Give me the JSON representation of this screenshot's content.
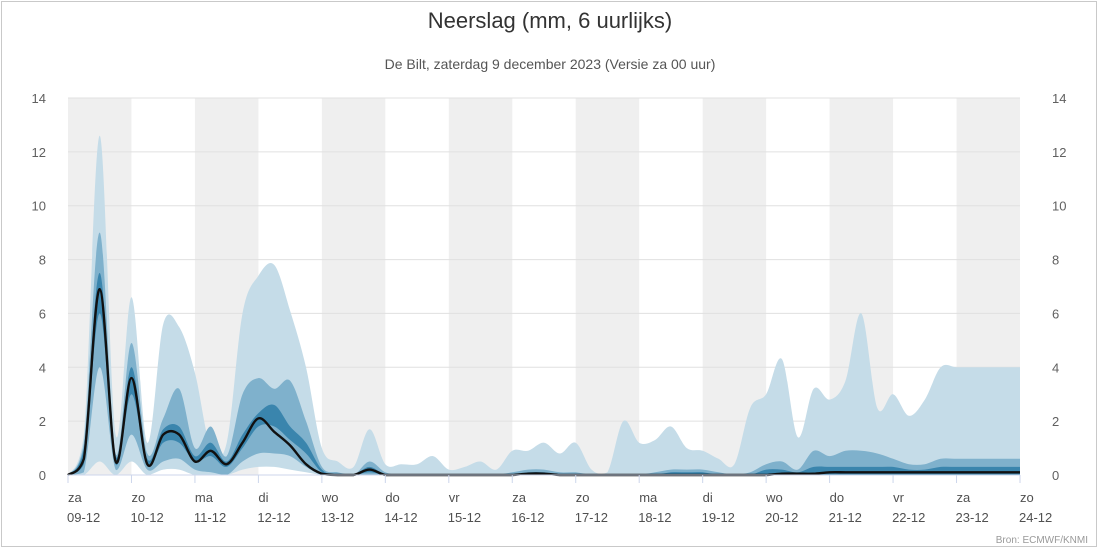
{
  "title": "Neerslag (mm, 6 uurlijks)",
  "subtitle": "De Bilt, zaterdag 9 december 2023 (Versie za 00 uur)",
  "credit": "Bron: ECMWF/KNMI",
  "colors": {
    "outer_band": "#c5dce8",
    "middle_band": "#7fb1cc",
    "inner_band": "#3a85ad",
    "median_line": "#111111",
    "day_shade": "#efefef",
    "grid": "#e0e0e0"
  },
  "chart_data": {
    "type": "area",
    "x_unit": "6-hourly steps from za 09-12 00h",
    "y_range": [
      0,
      14
    ],
    "y_ticks": [
      0,
      2,
      4,
      6,
      8,
      10,
      12,
      14
    ],
    "alternating_day_shading": true,
    "days": [
      {
        "weekday": "za",
        "date": "09-12"
      },
      {
        "weekday": "zo",
        "date": "10-12"
      },
      {
        "weekday": "ma",
        "date": "11-12"
      },
      {
        "weekday": "di",
        "date": "12-12"
      },
      {
        "weekday": "wo",
        "date": "13-12"
      },
      {
        "weekday": "do",
        "date": "14-12"
      },
      {
        "weekday": "vr",
        "date": "15-12"
      },
      {
        "weekday": "za",
        "date": "16-12"
      },
      {
        "weekday": "zo",
        "date": "17-12"
      },
      {
        "weekday": "ma",
        "date": "18-12"
      },
      {
        "weekday": "di",
        "date": "19-12"
      },
      {
        "weekday": "wo",
        "date": "20-12"
      },
      {
        "weekday": "do",
        "date": "21-12"
      },
      {
        "weekday": "vr",
        "date": "22-12"
      },
      {
        "weekday": "za",
        "date": "23-12"
      },
      {
        "weekday": "zo",
        "date": "24-12"
      }
    ],
    "x": [
      0,
      1,
      2,
      3,
      4,
      5,
      6,
      7,
      8,
      9,
      10,
      11,
      12,
      13,
      14,
      15,
      16,
      17,
      18,
      19,
      20,
      21,
      22,
      23,
      24,
      25,
      26,
      27,
      28,
      29,
      30,
      31,
      32,
      33,
      34,
      35,
      36,
      37,
      38,
      39,
      40,
      41,
      42,
      43,
      44,
      45,
      46,
      47,
      48,
      49,
      50,
      51,
      52,
      53,
      54,
      55,
      56,
      57,
      58,
      59,
      60
    ],
    "series": [
      {
        "role": "outer_band",
        "upper": [
          0,
          1.5,
          12.6,
          1.5,
          6.6,
          1.2,
          5.6,
          5.5,
          3.8,
          1.0,
          1.2,
          6.0,
          7.4,
          7.8,
          6.1,
          4.0,
          1.0,
          0.5,
          0.3,
          1.7,
          0.4,
          0.4,
          0.4,
          0.7,
          0.2,
          0.3,
          0.5,
          0.2,
          0.9,
          0.9,
          1.2,
          0.8,
          1.2,
          0.2,
          0.1,
          2.0,
          1.2,
          1.3,
          1.8,
          1.0,
          0.9,
          0.6,
          0.4,
          2.5,
          3.0,
          4.3,
          1.4,
          3.2,
          2.8,
          3.5,
          6.0,
          2.5,
          3.0,
          2.2,
          2.8,
          4.0,
          4.0,
          4.0,
          4.0,
          4.0,
          4.0
        ],
        "lower": [
          0,
          0,
          0.5,
          0,
          0.5,
          0,
          0.2,
          0.2,
          0,
          0,
          0,
          0.2,
          0.3,
          0.3,
          0.2,
          0.1,
          0,
          0,
          0,
          0,
          0,
          0,
          0,
          0,
          0,
          0,
          0,
          0,
          0,
          0,
          0,
          0,
          0,
          0,
          0,
          0,
          0,
          0,
          0,
          0,
          0,
          0,
          0,
          0,
          0,
          0,
          0,
          0,
          0,
          0,
          0,
          0,
          0,
          0,
          0,
          0,
          0,
          0,
          0,
          0,
          0
        ]
      },
      {
        "role": "middle_band",
        "upper": [
          0,
          1.2,
          9.0,
          0.8,
          4.9,
          0.8,
          2.1,
          3.2,
          1.0,
          1.8,
          0.7,
          3.0,
          3.6,
          3.2,
          3.5,
          2.0,
          0.3,
          0.1,
          0,
          0.5,
          0.1,
          0,
          0,
          0,
          0,
          0,
          0,
          0,
          0.1,
          0.2,
          0.2,
          0.1,
          0.1,
          0,
          0,
          0,
          0,
          0.1,
          0.2,
          0.2,
          0.2,
          0.1,
          0,
          0.1,
          0.4,
          0.5,
          0.2,
          0.9,
          0.7,
          0.9,
          0.9,
          0.8,
          0.6,
          0.4,
          0.4,
          0.6,
          0.6,
          0.6,
          0.6,
          0.6,
          0.6
        ],
        "lower": [
          0,
          0.1,
          4.0,
          0.2,
          1.5,
          0.2,
          0.5,
          0.6,
          0.2,
          0.1,
          0,
          0.5,
          0.8,
          0.8,
          0.7,
          0.3,
          0,
          0,
          0,
          0,
          0,
          0,
          0,
          0,
          0,
          0,
          0,
          0,
          0,
          0,
          0,
          0,
          0,
          0,
          0,
          0,
          0,
          0,
          0,
          0,
          0,
          0,
          0,
          0,
          0,
          0,
          0,
          0,
          0,
          0,
          0,
          0,
          0,
          0,
          0,
          0,
          0,
          0,
          0,
          0,
          0
        ]
      },
      {
        "role": "inner_band",
        "upper": [
          0,
          1.0,
          7.5,
          0.7,
          4.0,
          0.6,
          1.7,
          1.8,
          0.7,
          1.2,
          0.5,
          1.5,
          2.3,
          2.6,
          1.8,
          1.2,
          0.2,
          0,
          0,
          0.3,
          0,
          0,
          0,
          0,
          0,
          0,
          0,
          0,
          0,
          0.1,
          0.1,
          0,
          0,
          0,
          0,
          0,
          0,
          0,
          0.1,
          0.1,
          0.1,
          0,
          0,
          0,
          0.2,
          0.2,
          0.1,
          0.3,
          0.3,
          0.3,
          0.3,
          0.3,
          0.3,
          0.2,
          0.2,
          0.3,
          0.3,
          0.3,
          0.3,
          0.3,
          0.3
        ],
        "lower": [
          0,
          0.4,
          6.0,
          0.4,
          3.0,
          0.4,
          1.2,
          1.2,
          0.5,
          0.7,
          0.3,
          1.0,
          1.8,
          1.8,
          1.3,
          0.8,
          0.1,
          0,
          0,
          0.1,
          0,
          0,
          0,
          0,
          0,
          0,
          0,
          0,
          0,
          0,
          0,
          0,
          0,
          0,
          0,
          0,
          0,
          0,
          0,
          0,
          0,
          0,
          0,
          0,
          0,
          0,
          0,
          0,
          0,
          0,
          0,
          0,
          0,
          0,
          0,
          0,
          0,
          0,
          0,
          0,
          0
        ]
      },
      {
        "role": "median_line",
        "values": [
          0,
          0.6,
          6.9,
          0.5,
          3.6,
          0.4,
          1.5,
          1.5,
          0.5,
          0.9,
          0.4,
          1.2,
          2.1,
          1.6,
          1.1,
          0.4,
          0.05,
          0,
          0,
          0.2,
          0,
          0,
          0,
          0,
          0,
          0,
          0,
          0,
          0,
          0.05,
          0.05,
          0,
          0,
          0,
          0,
          0,
          0,
          0,
          0,
          0,
          0,
          0,
          0,
          0,
          0,
          0.05,
          0.05,
          0.05,
          0.1,
          0.1,
          0.1,
          0.1,
          0.1,
          0.1,
          0.1,
          0.1,
          0.1,
          0.1,
          0.1,
          0.1,
          0.1
        ]
      }
    ]
  }
}
